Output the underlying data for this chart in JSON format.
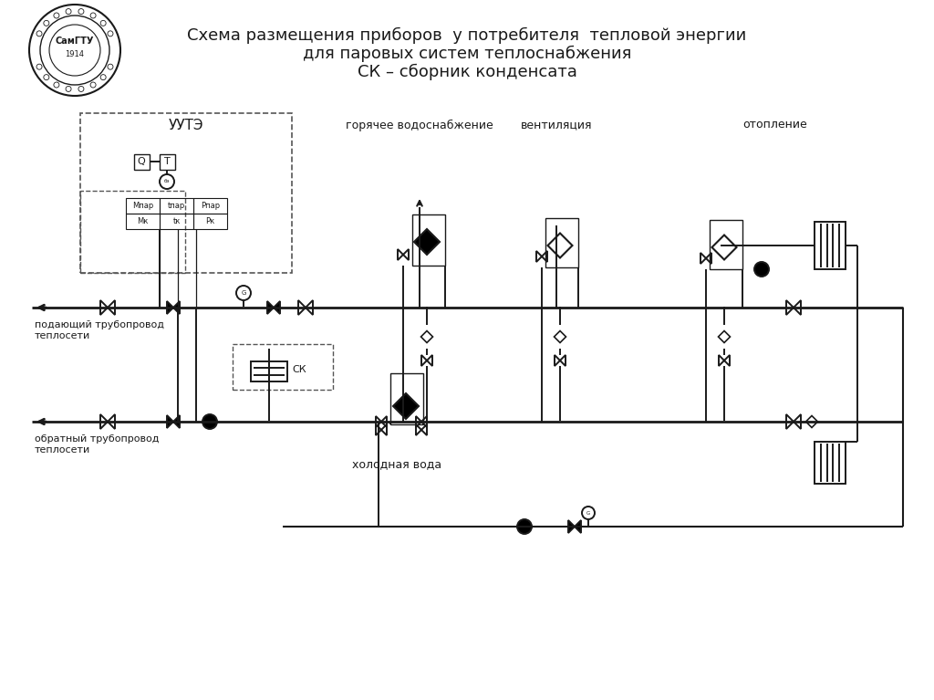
{
  "title_line1": "Схема размещения приборов  у потребителя  тепловой энергии",
  "title_line2": "для паровых систем теплоснабжения",
  "title_line3": "СК – сборник конденсата",
  "label_uute": "УУТЭ",
  "label_supply": "подающий трубопровод\nтеплосети",
  "label_return": "обратный трубопровод\nтеплосети",
  "label_hot_water": "горячее водоснабжение",
  "label_ventilation": "вентиляция",
  "label_heating": "отопление",
  "label_cold_water": "холодная вода",
  "label_sk": "СК",
  "label_q": "Q",
  "label_t": "T",
  "label_mpar": "Мпар",
  "label_tpar": "tпар",
  "label_ppar": "Рпар",
  "label_mk": "Мк",
  "label_tk": "tк",
  "label_pk": "Рк",
  "bg_color": "#ffffff",
  "line_color": "#1a1a1a",
  "dashed_color": "#555555"
}
